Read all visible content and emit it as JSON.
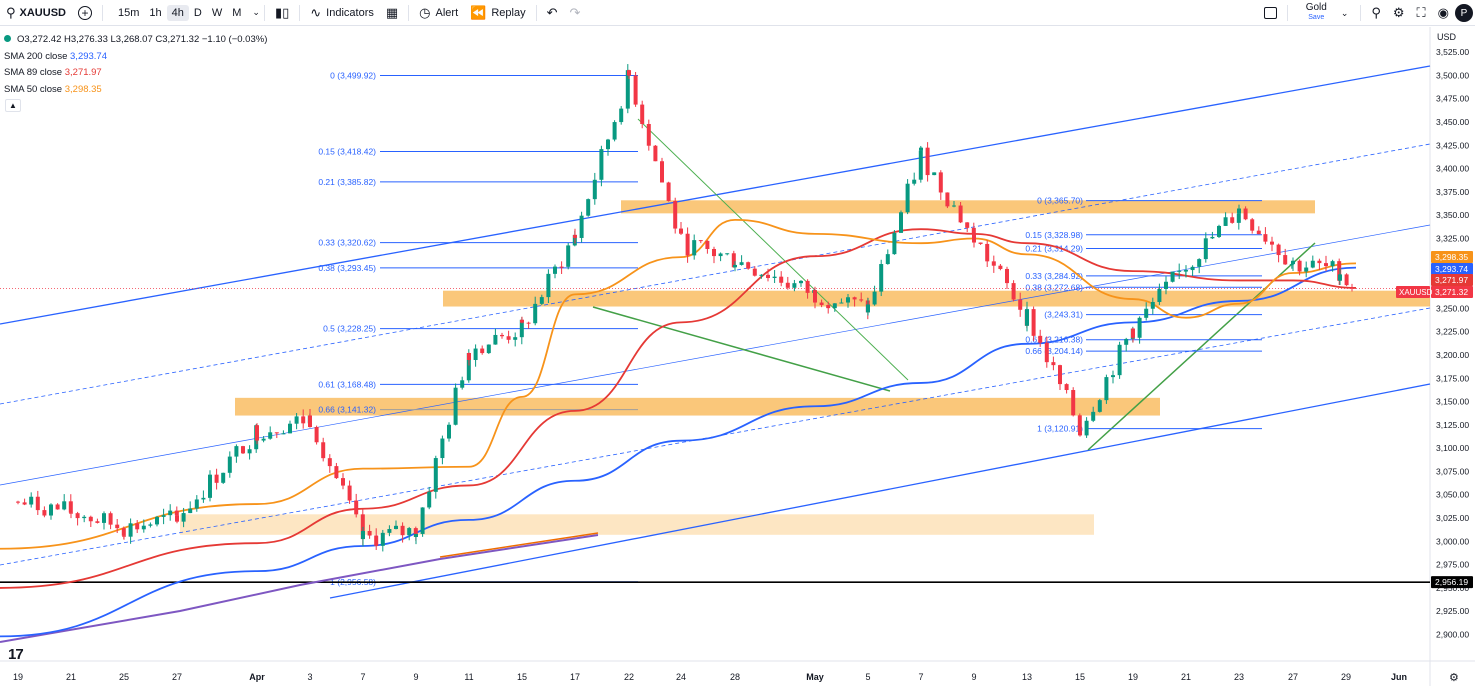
{
  "toolbar": {
    "symbol": "XAUUSD",
    "intervals": [
      "15m",
      "1h",
      "4h",
      "D",
      "W",
      "M"
    ],
    "active_interval": "4h",
    "indicators_label": "Indicators",
    "alert_label": "Alert",
    "replay_label": "Replay",
    "layout_name": "Gold",
    "layout_sub": "Save",
    "avatar_letter": "P"
  },
  "legend": {
    "ohlc_line": "O3,272.42  H3,276.33  L3,268.07  C3,271.32  −1.10 (−0.03%)",
    "sma200_name": "SMA 200 close",
    "sma200_value": "3,293.74",
    "sma89_name": "SMA 89 close",
    "sma89_value": "3,271.97",
    "sma50_name": "SMA 50 close",
    "sma50_value": "3,298.35"
  },
  "chart_data": {
    "type": "candlestick",
    "symbol": "XAUUSD",
    "currency": "USD",
    "timeframe": "4h",
    "y_range": [
      2878,
      3552
    ],
    "y_ticks": [
      2900,
      2925,
      2950,
      2975,
      3000,
      3025,
      3050,
      3075,
      3100,
      3125,
      3150,
      3175,
      3200,
      3225,
      3250,
      3275,
      3300,
      3325,
      3350,
      3375,
      3400,
      3425,
      3450,
      3475,
      3500,
      3525
    ],
    "x_ticks": [
      "19",
      "21",
      "25",
      "27",
      "Apr",
      "3",
      "7",
      "9",
      "11",
      "15",
      "17",
      "22",
      "24",
      "28",
      "May",
      "5",
      "7",
      "9",
      "13",
      "15",
      "19",
      "21",
      "23",
      "27",
      "29",
      "Jun"
    ],
    "price_path": [
      [
        "19",
        3042
      ],
      [
        "21",
        3032
      ],
      [
        "25",
        3014
      ],
      [
        "27",
        3025
      ],
      [
        "Apr",
        3118
      ],
      [
        "3",
        3132
      ],
      [
        "7",
        3002
      ],
      [
        "9",
        3012
      ],
      [
        "11",
        3205
      ],
      [
        "15",
        3228
      ],
      [
        "17",
        3328
      ],
      [
        "22",
        3499
      ],
      [
        "24",
        3320
      ],
      [
        "28",
        3302
      ],
      [
        "May",
        3265
      ],
      [
        "5",
        3250
      ],
      [
        "7",
        3415
      ],
      [
        "9",
        3325
      ],
      [
        "13",
        3242
      ],
      [
        "15",
        3121
      ],
      [
        "19",
        3228
      ],
      [
        "21",
        3296
      ],
      [
        "23",
        3356
      ],
      [
        "27",
        3298
      ],
      [
        "29",
        3290
      ],
      [
        "29",
        3271
      ]
    ],
    "series": [
      {
        "name": "SMA 200 close",
        "color": "#2962ff",
        "last": 3293.74,
        "values": [
          [
            -100,
            2898
          ],
          [
            "Apr",
            2968
          ],
          [
            "7",
            2995
          ],
          [
            "11",
            3023
          ],
          [
            "17",
            3065
          ],
          [
            "24",
            3108
          ],
          [
            "May",
            3145
          ],
          [
            "7",
            3170
          ],
          [
            "13",
            3212
          ],
          [
            "19",
            3235
          ],
          [
            "23",
            3258
          ],
          [
            "29",
            3293.74
          ]
        ]
      },
      {
        "name": "SMA 89 close",
        "color": "#e53935",
        "last": 3271.97,
        "values": [
          [
            -100,
            2950
          ],
          [
            "Apr",
            2998
          ],
          [
            "7",
            3035
          ],
          [
            "11",
            3060
          ],
          [
            "17",
            3140
          ],
          [
            "24",
            3235
          ],
          [
            "May",
            3306
          ],
          [
            "7",
            3335
          ],
          [
            "9",
            3330
          ],
          [
            "13",
            3320
          ],
          [
            "19",
            3290
          ],
          [
            "23",
            3280
          ],
          [
            "27",
            3280
          ],
          [
            "29",
            3271.97
          ]
        ]
      },
      {
        "name": "SMA 50 close",
        "color": "#f7931a",
        "last": 3298.35,
        "values": [
          [
            -100,
            2992
          ],
          [
            "Apr",
            3040
          ],
          [
            "7",
            3078
          ],
          [
            "11",
            3080
          ],
          [
            "15",
            3155
          ],
          [
            "17",
            3265
          ],
          [
            "24",
            3305
          ],
          [
            "28",
            3345
          ],
          [
            "May",
            3330
          ],
          [
            "7",
            3320
          ],
          [
            "9",
            3325
          ],
          [
            "13",
            3308
          ],
          [
            "19",
            3260
          ],
          [
            "21",
            3240
          ],
          [
            "23",
            3255
          ],
          [
            "27",
            3288
          ],
          [
            "29",
            3298.35
          ]
        ]
      }
    ],
    "fib_top": {
      "levels": [
        {
          "label": "0 (3,499.92)",
          "price": 3499.92
        },
        {
          "label": "0.15 (3,418.42)",
          "price": 3418.42
        },
        {
          "label": "0.21 (3,385.82)",
          "price": 3385.82
        },
        {
          "label": "0.33 (3,320.62)",
          "price": 3320.62
        },
        {
          "label": "0.38 (3,293.45)",
          "price": 3293.45
        },
        {
          "label": "0.5 (3,228.25)",
          "price": 3228.25
        },
        {
          "label": "0.61 (3,168.48)",
          "price": 3168.48
        },
        {
          "label": "0.66 (3,141.32)",
          "price": 3141.32
        },
        {
          "label": "1 (2,956.58)",
          "price": 2956.58
        }
      ]
    },
    "fib_recent": {
      "levels": [
        {
          "label": "0 (3,365.70)",
          "price": 3365.7
        },
        {
          "label": "0.15 (3,328.98)",
          "price": 3328.98
        },
        {
          "label": "0.21 (3,314.29)",
          "price": 3314.29
        },
        {
          "label": "0.33 (3,284.92)",
          "price": 3284.92
        },
        {
          "label": "0.38 (3,272.68)",
          "price": 3272.68
        },
        {
          "label": "(3,243.31)",
          "price": 3243.31
        },
        {
          "label": "0.61 (3,216.38)",
          "price": 3216.38
        },
        {
          "label": "0.66 (3,204.14)",
          "price": 3204.14
        },
        {
          "label": "1 (3,120.91)",
          "price": 3120.91
        }
      ]
    },
    "zones": [
      {
        "top": 3366,
        "bottom": 3352
      },
      {
        "top": 3269,
        "bottom": 3252
      },
      {
        "top": 3154,
        "bottom": 3135
      },
      {
        "top": 3029,
        "bottom": 3007
      }
    ],
    "horizontal_line": {
      "price": 2956.19,
      "label": "2,956.19"
    },
    "price_tags": [
      {
        "text": "3,298.35",
        "color": "#f7931a",
        "price": 3298.35
      },
      {
        "text": "3,293.74",
        "color": "#2962ff",
        "price": 3293.74
      },
      {
        "text": "3,271.97",
        "color": "#e53935",
        "price": 3271.97
      },
      {
        "text": "3,271.32",
        "color": "#f23645",
        "price": 3271.32
      }
    ],
    "symbol_tag": "XAUUSD",
    "candle_colors": {
      "up": "#089981",
      "down": "#f23645"
    }
  }
}
